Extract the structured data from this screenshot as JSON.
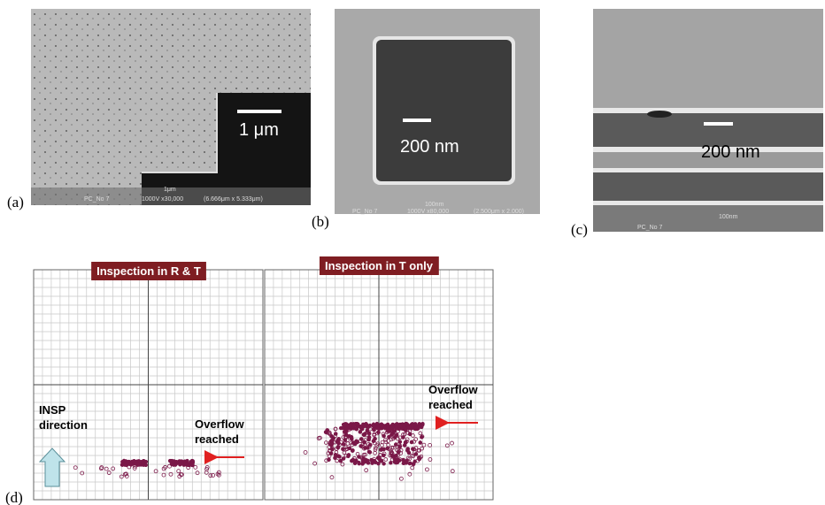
{
  "panels": [
    {
      "label": "(a)",
      "scale_bar": "1 μm",
      "info": [
        "1μm",
        "PC_No 7",
        "1000V x30,000",
        "(6.666μm x 5.333μm)"
      ]
    },
    {
      "label": "(b)",
      "scale_bar": "200 nm",
      "info": [
        "100nm",
        "PC_No 7",
        "1000V x80,000",
        "(2.500μm x 2.000)"
      ]
    },
    {
      "label": "(c)",
      "scale_bar": "200 nm",
      "info": [
        "100nm",
        "PC_No 7"
      ]
    }
  ],
  "defect_maps": {
    "label": "(d)",
    "maps": [
      {
        "title": "Inspection in R & T",
        "direction": [
          "INSP",
          "direction"
        ],
        "note": [
          "Overflow",
          "reached"
        ]
      },
      {
        "title": "Inspection in T only",
        "note": [
          "Overflow",
          "reached"
        ]
      }
    ]
  }
}
